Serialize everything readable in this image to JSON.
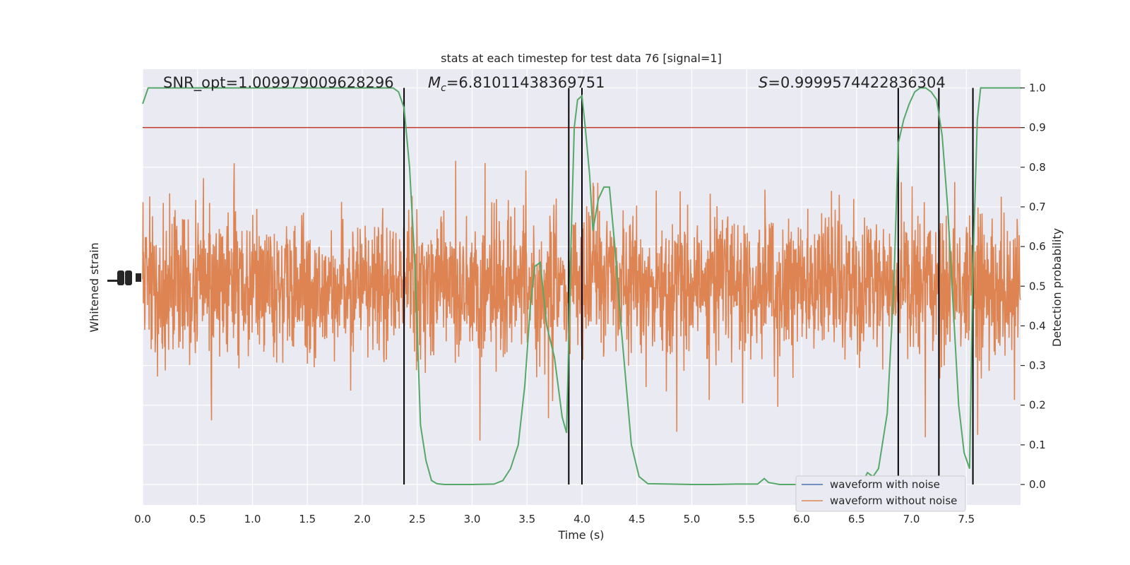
{
  "chart_data": {
    "type": "line",
    "title": "stats at each timestep for test data 76 [signal=1]",
    "xlabel": "Time (s)",
    "ylabel_left": "Whitened strain",
    "ylabel_right": "Detection probability",
    "xlim": [
      0.0,
      8.0
    ],
    "ylim_right": [
      -0.05,
      1.05
    ],
    "grid": true,
    "x_ticks": [
      "0.0",
      "0.5",
      "1.0",
      "1.5",
      "2.0",
      "2.5",
      "3.0",
      "3.5",
      "4.0",
      "4.5",
      "5.0",
      "5.5",
      "6.0",
      "6.5",
      "7.0",
      "7.5"
    ],
    "x_tick_values": [
      0.0,
      0.5,
      1.0,
      1.5,
      2.0,
      2.5,
      3.0,
      3.5,
      4.0,
      4.5,
      5.0,
      5.5,
      6.0,
      6.5,
      7.0,
      7.5
    ],
    "y_right_ticks": [
      "0.0",
      "0.1",
      "0.2",
      "0.3",
      "0.4",
      "0.5",
      "0.6",
      "0.7",
      "0.8",
      "0.9",
      "1.0"
    ],
    "y_right_tick_values": [
      0.0,
      0.1,
      0.2,
      0.3,
      0.4,
      0.5,
      0.6,
      0.7,
      0.8,
      0.9,
      1.0
    ],
    "annotations": {
      "snr": "SNR_opt=1.009979009628296",
      "mc_prefix": "M",
      "mc_sub": "c",
      "mc_value": "=6.81011438369751",
      "s_prefix": "S",
      "s_value": "=0.9999574422836304"
    },
    "threshold": {
      "value": 0.9,
      "color": "#c0392b"
    },
    "vertical_lines": [
      2.38,
      3.88,
      4.0,
      6.88,
      7.25,
      7.56
    ],
    "legend": {
      "position": "lower-right",
      "entries": [
        {
          "label": "waveform with noise",
          "color": "#4c72b0"
        },
        {
          "label": "waveform without noise",
          "color": "#dd8452"
        }
      ]
    },
    "series": [
      {
        "name": "detection probability",
        "color": "#55a868",
        "x": [
          0.0,
          0.05,
          0.1,
          0.2,
          0.4,
          0.6,
          0.8,
          1.0,
          1.2,
          1.4,
          1.6,
          1.8,
          2.0,
          2.2,
          2.28,
          2.33,
          2.38,
          2.43,
          2.48,
          2.53,
          2.58,
          2.63,
          2.68,
          2.75,
          2.85,
          3.0,
          3.2,
          3.28,
          3.35,
          3.42,
          3.48,
          3.53,
          3.57,
          3.62,
          3.68,
          3.75,
          3.82,
          3.86,
          3.9,
          3.93,
          3.96,
          4.0,
          4.03,
          4.07,
          4.1,
          4.15,
          4.2,
          4.25,
          4.3,
          4.35,
          4.4,
          4.45,
          4.52,
          4.6,
          4.8,
          5.0,
          5.2,
          5.4,
          5.6,
          5.66,
          5.7,
          5.8,
          5.9,
          6.0,
          6.2,
          6.4,
          6.55,
          6.6,
          6.65,
          6.7,
          6.78,
          6.84,
          6.88,
          6.93,
          6.98,
          7.03,
          7.08,
          7.13,
          7.18,
          7.23,
          7.28,
          7.33,
          7.38,
          7.43,
          7.48,
          7.53,
          7.56,
          7.6,
          7.63,
          7.66,
          7.7,
          7.8,
          7.9,
          8.0
        ],
        "y": [
          0.96,
          1.0,
          1.0,
          1.0,
          1.0,
          1.0,
          1.0,
          1.0,
          1.0,
          1.0,
          1.0,
          1.0,
          1.0,
          1.0,
          1.0,
          0.99,
          0.95,
          0.8,
          0.55,
          0.15,
          0.06,
          0.01,
          0.002,
          0.0,
          0.0,
          0.0,
          0.001,
          0.01,
          0.04,
          0.1,
          0.25,
          0.45,
          0.55,
          0.56,
          0.4,
          0.32,
          0.17,
          0.13,
          0.6,
          0.9,
          0.97,
          0.98,
          0.9,
          0.78,
          0.64,
          0.72,
          0.75,
          0.75,
          0.6,
          0.42,
          0.26,
          0.1,
          0.02,
          0.002,
          0.001,
          0.0,
          0.0,
          0.001,
          0.001,
          0.015,
          0.005,
          0.0,
          0.0,
          0.0,
          0.0,
          0.0,
          0.003,
          0.03,
          0.02,
          0.04,
          0.18,
          0.5,
          0.86,
          0.92,
          0.96,
          0.99,
          1.0,
          1.0,
          0.99,
          0.97,
          0.88,
          0.7,
          0.45,
          0.2,
          0.08,
          0.04,
          0.55,
          0.92,
          1.0,
          1.0,
          1.0,
          1.0,
          1.0,
          1.0
        ]
      },
      {
        "name": "waveform without noise",
        "color": "#dd8452",
        "render": "dense oscillating strain trace across full time range"
      }
    ]
  }
}
